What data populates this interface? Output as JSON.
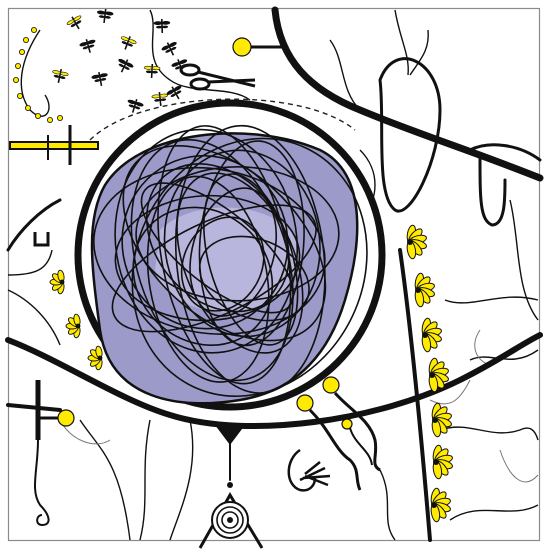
{
  "artwork": {
    "colors": {
      "background": "#ffffff",
      "frame": "#8a8a8a",
      "ink": "#111111",
      "lavender": "#9c9ac9",
      "lavender_dark": "#7f7cb4",
      "yellow": "#ffea00"
    },
    "motifs": [
      "scribble-ball",
      "eye-shape",
      "dragonfly-swarm",
      "yellow-flowers",
      "yellow-bulbs",
      "scissors",
      "spiral-target",
      "tendrils"
    ]
  }
}
